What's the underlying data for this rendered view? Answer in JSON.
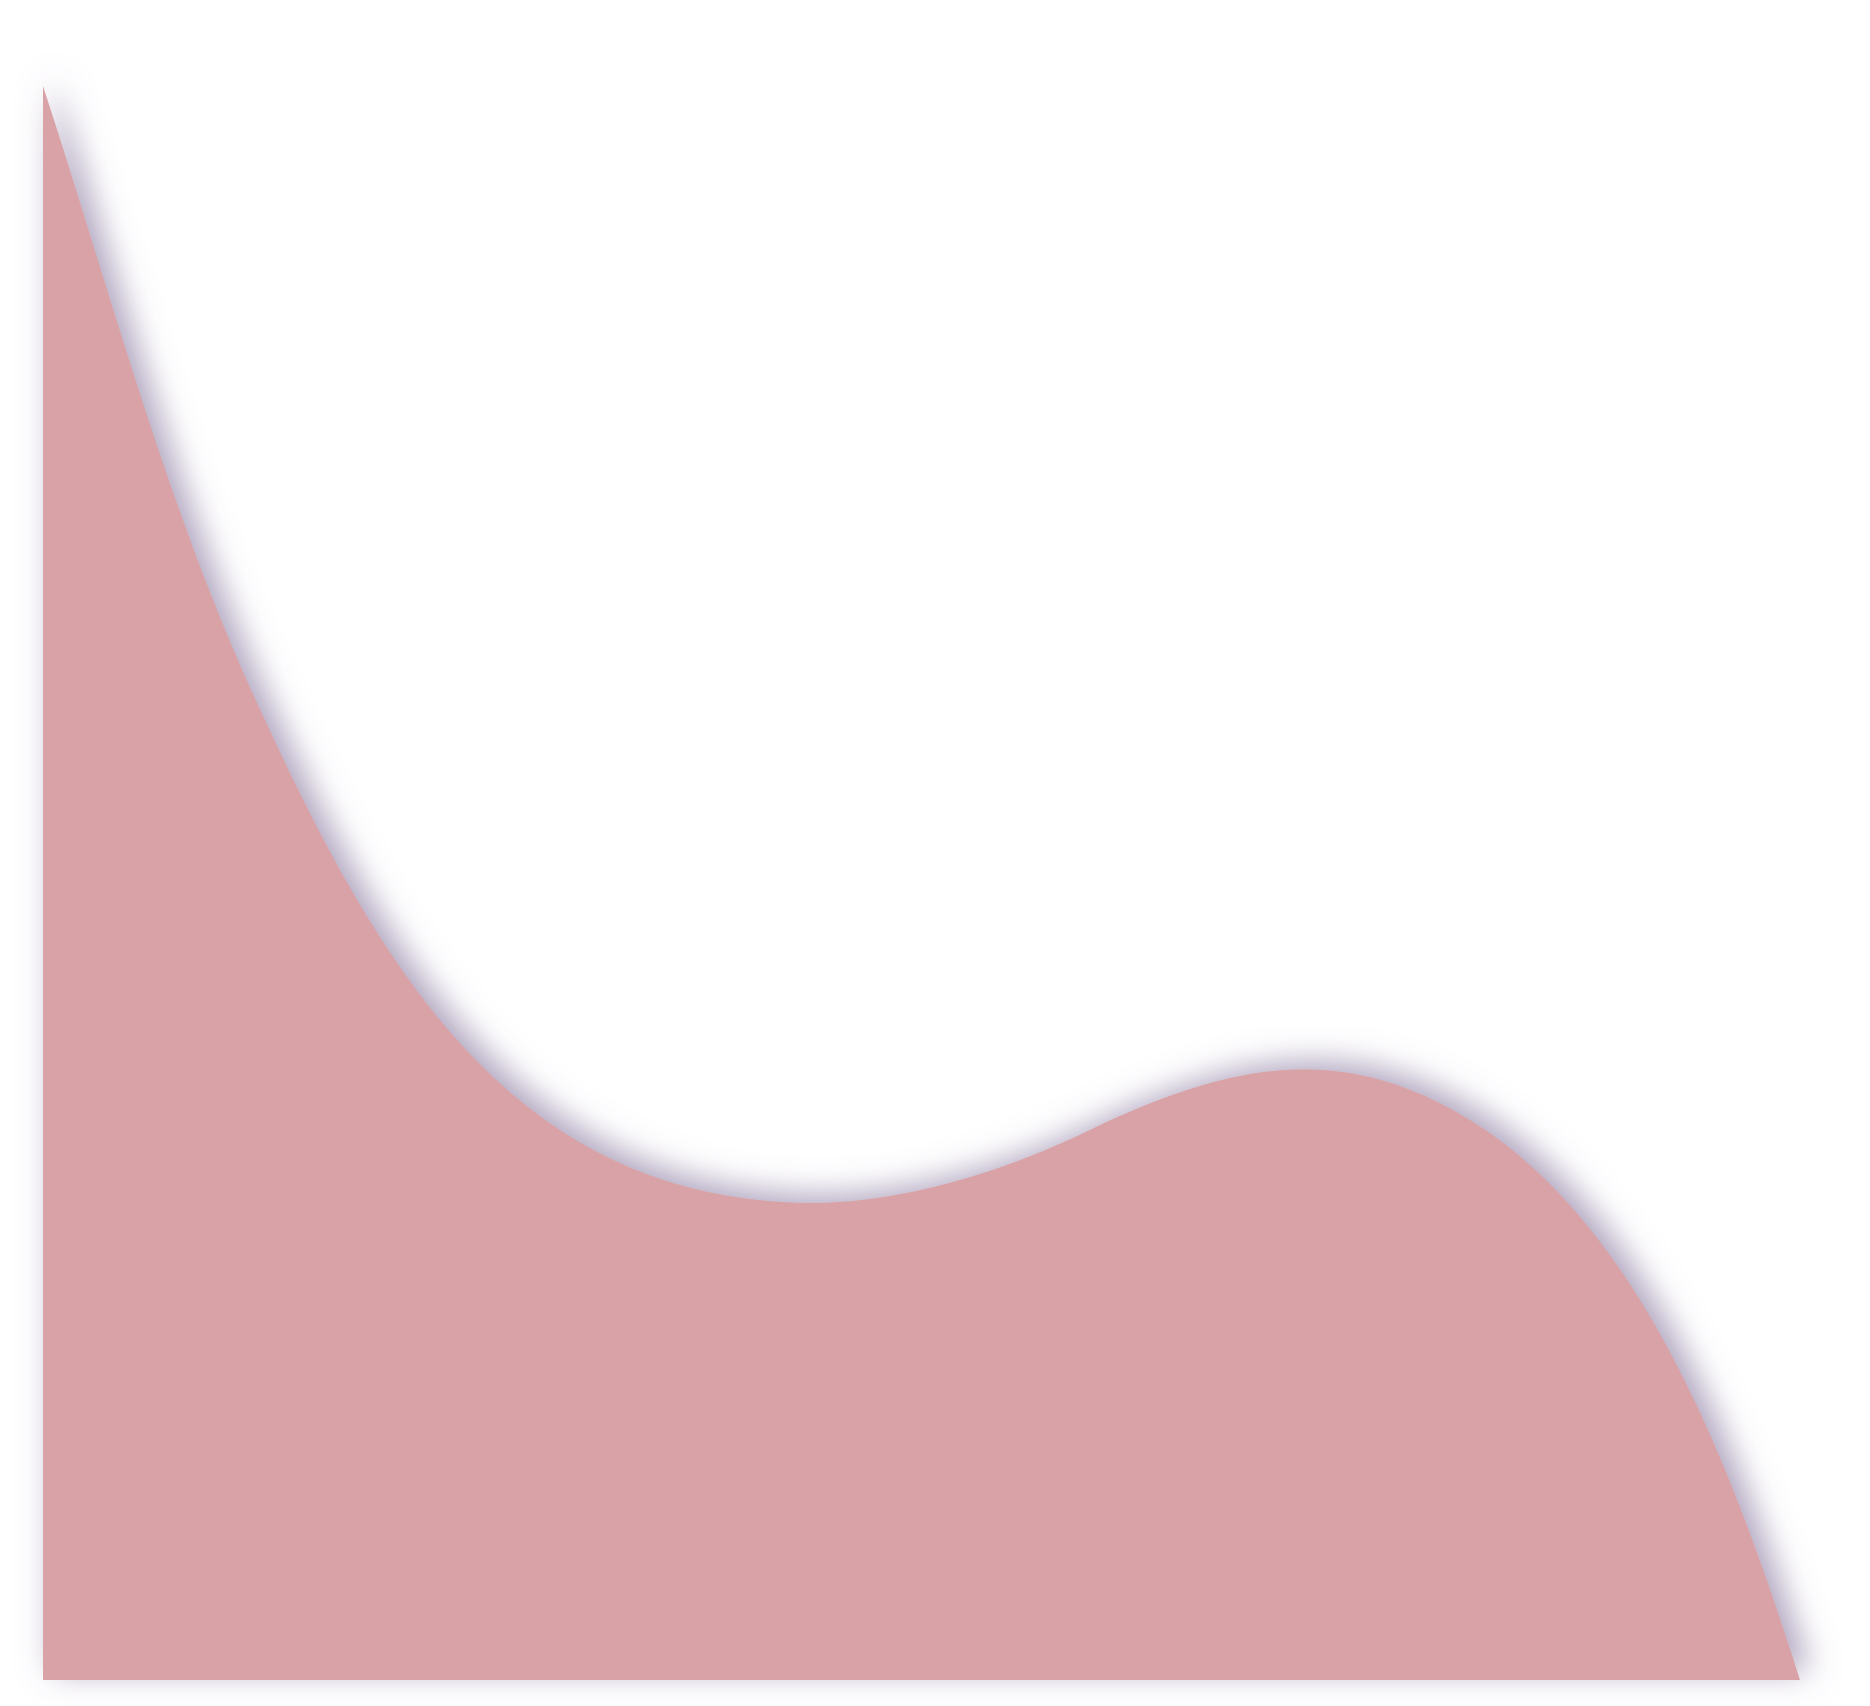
{
  "graphic": {
    "kind": "decorative-wave-shape",
    "fill_color": "#d9a2a6",
    "shadow_color": "#6e5a8a",
    "background_color": "#ffffff"
  }
}
